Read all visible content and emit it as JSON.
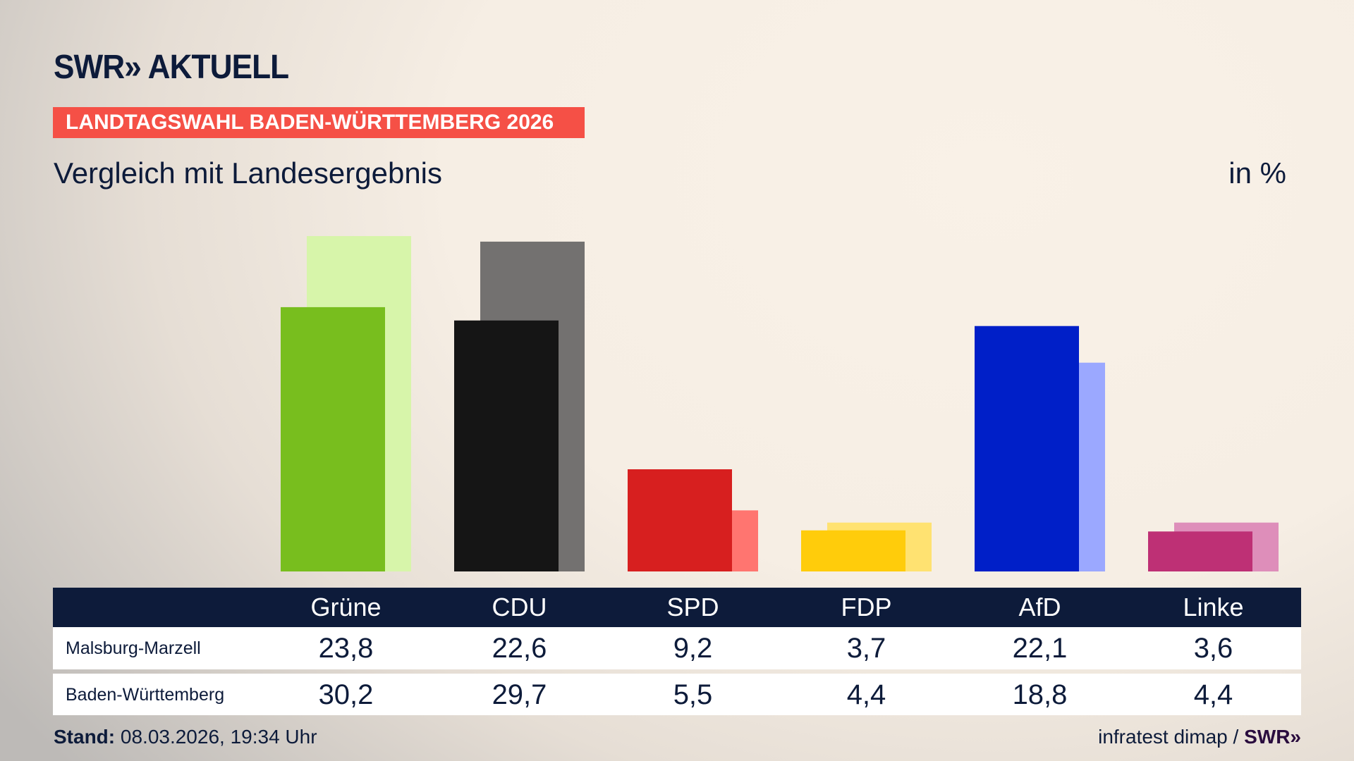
{
  "brand": {
    "logo": "SWR» AKTUELL"
  },
  "banner": "LANDTAGSWAHL BADEN-WÜRTTEMBERG 2026",
  "subtitle": "Vergleich mit Landesergebnis",
  "unit": "in %",
  "chart_data": {
    "type": "bar",
    "categories": [
      "Grüne",
      "CDU",
      "SPD",
      "FDP",
      "AfD",
      "Linke"
    ],
    "series": [
      {
        "name": "Malsburg-Marzell",
        "values": [
          23.8,
          22.6,
          9.2,
          3.7,
          22.1,
          3.6
        ],
        "labels": [
          "23,8",
          "22,6",
          "9,2",
          "3,7",
          "22,1",
          "3,6"
        ],
        "colors": [
          "#78be1e",
          "#151515",
          "#d71f1f",
          "#ffcc0b",
          "#001fc8",
          "#be3075"
        ]
      },
      {
        "name": "Baden-Württemberg",
        "values": [
          30.2,
          29.7,
          5.5,
          4.4,
          18.8,
          4.4
        ],
        "labels": [
          "30,2",
          "29,7",
          "5,5",
          "4,4",
          "18,8",
          "4,4"
        ],
        "colors": [
          "#d7f5aa",
          "#737170",
          "#ff7570",
          "#ffe271",
          "#9ba8ff",
          "#de8eba"
        ]
      }
    ]
  },
  "footer": {
    "stand_label": "Stand:",
    "stand_value": "08.03.2026, 19:34 Uhr",
    "source": "infratest dimap /",
    "source_logo": "SWR»"
  }
}
